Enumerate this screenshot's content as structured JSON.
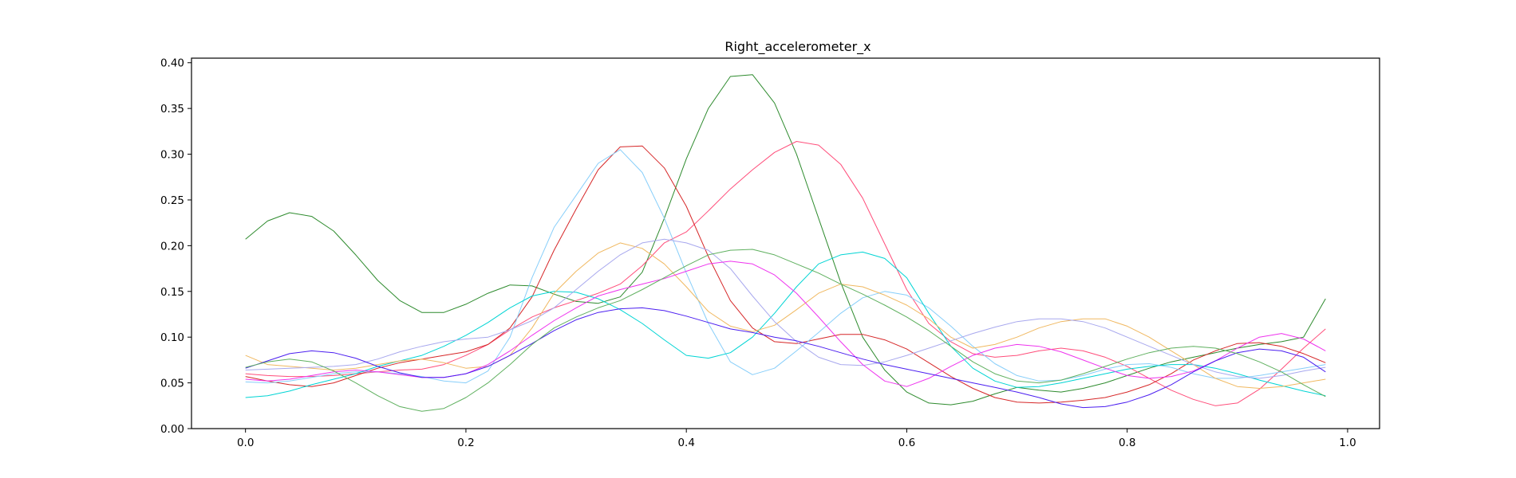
{
  "chart_data": {
    "type": "line",
    "title": "Right_accelerometer_x",
    "xlabel": "",
    "ylabel": "",
    "xlim": [
      -0.049,
      1.029
    ],
    "ylim": [
      0.0,
      0.405
    ],
    "xticks": [
      0.0,
      0.2,
      0.4,
      0.6,
      0.8,
      1.0
    ],
    "xtick_labels": [
      "0.0",
      "0.2",
      "0.4",
      "0.6",
      "0.8",
      "1.0"
    ],
    "yticks": [
      0.0,
      0.05,
      0.1,
      0.15,
      0.2,
      0.25,
      0.3,
      0.35,
      0.4
    ],
    "ytick_labels": [
      "0.00",
      "0.05",
      "0.10",
      "0.15",
      "0.20",
      "0.25",
      "0.30",
      "0.35",
      "0.40"
    ],
    "grid": false,
    "x": [
      0.0,
      0.02,
      0.04,
      0.06,
      0.08,
      0.1,
      0.12,
      0.14,
      0.16,
      0.18,
      0.2,
      0.22,
      0.24,
      0.26,
      0.28,
      0.3,
      0.32,
      0.34,
      0.36,
      0.38,
      0.4,
      0.42,
      0.44,
      0.46,
      0.48,
      0.5,
      0.52,
      0.54,
      0.56,
      0.58,
      0.6,
      0.62,
      0.64,
      0.66,
      0.68,
      0.7,
      0.72,
      0.74,
      0.76,
      0.78,
      0.8,
      0.82,
      0.84,
      0.86,
      0.88,
      0.9,
      0.92,
      0.94,
      0.96,
      0.98
    ],
    "series": [
      {
        "color": "#2e8b2e",
        "values": [
          0.207,
          0.227,
          0.236,
          0.232,
          0.216,
          0.19,
          0.162,
          0.14,
          0.127,
          0.127,
          0.136,
          0.148,
          0.157,
          0.156,
          0.147,
          0.139,
          0.137,
          0.144,
          0.171,
          0.23,
          0.295,
          0.35,
          0.385,
          0.387,
          0.356,
          0.3,
          0.23,
          0.16,
          0.1,
          0.064,
          0.04,
          0.028,
          0.026,
          0.03,
          0.038,
          0.045,
          0.042,
          0.04,
          0.044,
          0.05,
          0.058,
          0.066,
          0.073,
          0.078,
          0.083,
          0.088,
          0.092,
          0.095,
          0.1,
          0.142
        ]
      },
      {
        "color": "#ff4d7a",
        "values": [
          0.06,
          0.058,
          0.057,
          0.057,
          0.058,
          0.06,
          0.062,
          0.064,
          0.065,
          0.07,
          0.08,
          0.092,
          0.108,
          0.122,
          0.132,
          0.14,
          0.148,
          0.158,
          0.178,
          0.203,
          0.215,
          0.238,
          0.262,
          0.283,
          0.302,
          0.314,
          0.31,
          0.289,
          0.252,
          0.202,
          0.152,
          0.115,
          0.095,
          0.082,
          0.078,
          0.08,
          0.085,
          0.088,
          0.085,
          0.078,
          0.068,
          0.055,
          0.042,
          0.032,
          0.025,
          0.028,
          0.043,
          0.065,
          0.088,
          0.109
        ]
      },
      {
        "color": "#d62728",
        "values": [
          0.057,
          0.052,
          0.048,
          0.046,
          0.05,
          0.058,
          0.066,
          0.072,
          0.076,
          0.08,
          0.084,
          0.092,
          0.11,
          0.144,
          0.195,
          0.24,
          0.283,
          0.308,
          0.309,
          0.285,
          0.243,
          0.188,
          0.14,
          0.11,
          0.095,
          0.093,
          0.098,
          0.103,
          0.103,
          0.097,
          0.087,
          0.072,
          0.057,
          0.044,
          0.034,
          0.029,
          0.028,
          0.029,
          0.031,
          0.034,
          0.04,
          0.048,
          0.06,
          0.075,
          0.085,
          0.093,
          0.094,
          0.09,
          0.082,
          0.072
        ]
      },
      {
        "color": "#87cefa",
        "values": [
          0.051,
          0.05,
          0.052,
          0.056,
          0.06,
          0.062,
          0.062,
          0.06,
          0.057,
          0.052,
          0.05,
          0.063,
          0.1,
          0.165,
          0.22,
          0.255,
          0.29,
          0.305,
          0.28,
          0.23,
          0.17,
          0.115,
          0.073,
          0.059,
          0.066,
          0.085,
          0.105,
          0.126,
          0.143,
          0.15,
          0.146,
          0.132,
          0.112,
          0.09,
          0.071,
          0.058,
          0.052,
          0.053,
          0.058,
          0.065,
          0.07,
          0.071,
          0.067,
          0.06,
          0.055,
          0.055,
          0.058,
          0.062,
          0.066,
          0.07
        ]
      },
      {
        "color": "#00d4d4",
        "values": [
          0.034,
          0.036,
          0.041,
          0.048,
          0.054,
          0.06,
          0.068,
          0.074,
          0.08,
          0.09,
          0.102,
          0.116,
          0.132,
          0.145,
          0.15,
          0.149,
          0.142,
          0.13,
          0.115,
          0.097,
          0.08,
          0.077,
          0.083,
          0.1,
          0.126,
          0.155,
          0.18,
          0.19,
          0.193,
          0.186,
          0.165,
          0.126,
          0.09,
          0.066,
          0.052,
          0.045,
          0.046,
          0.05,
          0.055,
          0.06,
          0.065,
          0.068,
          0.07,
          0.07,
          0.066,
          0.06,
          0.053,
          0.047,
          0.041,
          0.036
        ]
      },
      {
        "color": "#f0b860",
        "values": [
          0.08,
          0.07,
          0.068,
          0.066,
          0.064,
          0.066,
          0.07,
          0.074,
          0.076,
          0.072,
          0.066,
          0.068,
          0.08,
          0.11,
          0.148,
          0.172,
          0.192,
          0.203,
          0.197,
          0.18,
          0.155,
          0.128,
          0.112,
          0.106,
          0.113,
          0.13,
          0.148,
          0.158,
          0.155,
          0.146,
          0.135,
          0.12,
          0.1,
          0.088,
          0.092,
          0.1,
          0.11,
          0.117,
          0.12,
          0.12,
          0.112,
          0.1,
          0.085,
          0.07,
          0.055,
          0.046,
          0.044,
          0.046,
          0.05,
          0.054
        ]
      },
      {
        "color": "#a8a8ee",
        "values": [
          0.064,
          0.065,
          0.066,
          0.067,
          0.068,
          0.07,
          0.076,
          0.084,
          0.09,
          0.095,
          0.098,
          0.1,
          0.108,
          0.118,
          0.132,
          0.152,
          0.172,
          0.19,
          0.203,
          0.207,
          0.203,
          0.195,
          0.175,
          0.145,
          0.117,
          0.095,
          0.078,
          0.07,
          0.069,
          0.073,
          0.08,
          0.088,
          0.096,
          0.104,
          0.111,
          0.117,
          0.12,
          0.12,
          0.117,
          0.11,
          0.1,
          0.09,
          0.08,
          0.07,
          0.062,
          0.057,
          0.055,
          0.058,
          0.063,
          0.067
        ]
      },
      {
        "color": "#ee33ee",
        "values": [
          0.054,
          0.052,
          0.054,
          0.058,
          0.062,
          0.064,
          0.062,
          0.059,
          0.056,
          0.056,
          0.06,
          0.07,
          0.085,
          0.102,
          0.118,
          0.132,
          0.145,
          0.152,
          0.158,
          0.164,
          0.172,
          0.18,
          0.183,
          0.18,
          0.168,
          0.148,
          0.122,
          0.095,
          0.07,
          0.052,
          0.046,
          0.055,
          0.068,
          0.08,
          0.088,
          0.092,
          0.09,
          0.084,
          0.075,
          0.066,
          0.058,
          0.055,
          0.057,
          0.063,
          0.074,
          0.088,
          0.1,
          0.104,
          0.098,
          0.085
        ]
      },
      {
        "color": "#4b1ef0",
        "values": [
          0.066,
          0.074,
          0.082,
          0.085,
          0.083,
          0.077,
          0.068,
          0.061,
          0.056,
          0.056,
          0.06,
          0.068,
          0.08,
          0.093,
          0.107,
          0.119,
          0.127,
          0.131,
          0.132,
          0.129,
          0.123,
          0.116,
          0.109,
          0.105,
          0.1,
          0.096,
          0.09,
          0.083,
          0.076,
          0.07,
          0.065,
          0.06,
          0.055,
          0.05,
          0.045,
          0.04,
          0.034,
          0.027,
          0.023,
          0.024,
          0.029,
          0.037,
          0.048,
          0.062,
          0.074,
          0.083,
          0.087,
          0.085,
          0.078,
          0.062
        ]
      },
      {
        "color": "#5fb05f",
        "values": [
          0.067,
          0.073,
          0.076,
          0.073,
          0.063,
          0.05,
          0.036,
          0.024,
          0.019,
          0.022,
          0.034,
          0.05,
          0.07,
          0.092,
          0.11,
          0.122,
          0.132,
          0.14,
          0.152,
          0.165,
          0.178,
          0.19,
          0.195,
          0.196,
          0.19,
          0.18,
          0.17,
          0.158,
          0.147,
          0.135,
          0.122,
          0.107,
          0.09,
          0.073,
          0.06,
          0.052,
          0.05,
          0.053,
          0.06,
          0.068,
          0.076,
          0.083,
          0.088,
          0.09,
          0.088,
          0.082,
          0.073,
          0.062,
          0.048,
          0.035
        ]
      }
    ]
  }
}
